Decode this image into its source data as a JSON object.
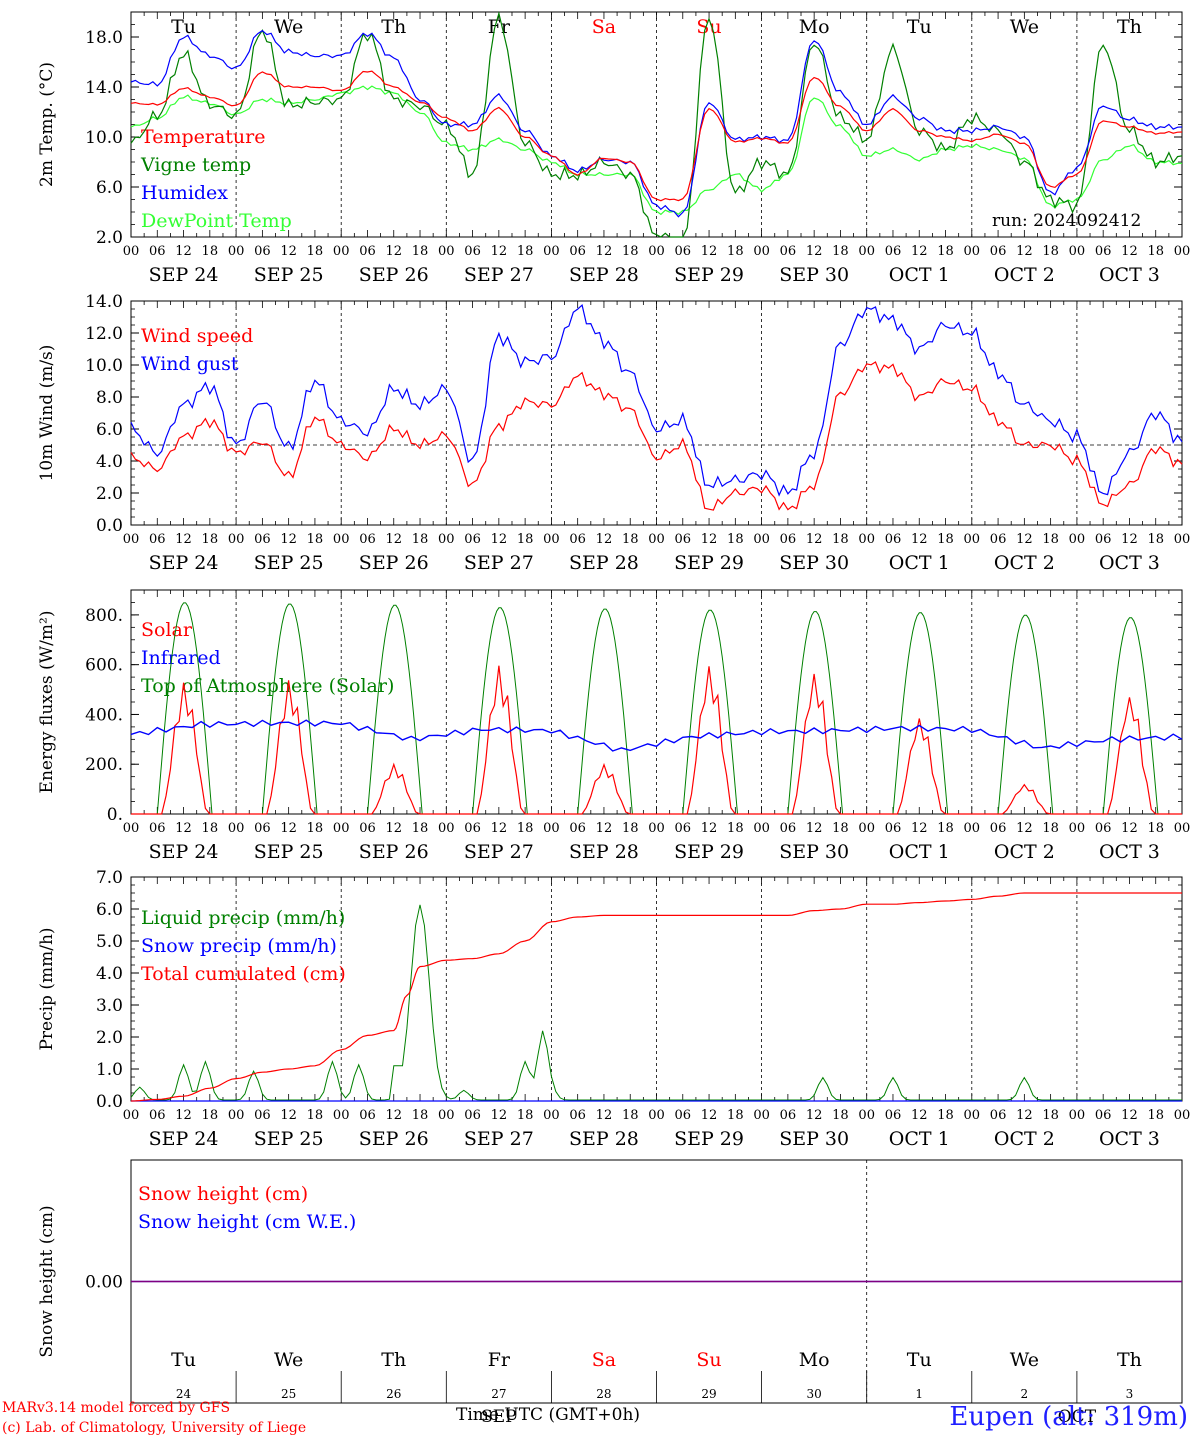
{
  "footer": {
    "model": "MARv3.14 model forced by GFS",
    "lab": "(c) Lab. of Climatology, University of Liege",
    "x_title": "Time UTC (GMT+0h)",
    "station": "Eupen (alt: 319m)",
    "run": "run: 2024092412"
  },
  "colors": {
    "red": "#ff0000",
    "green": "#008000",
    "blue": "#0000ff",
    "lightgreen": "#33ff33",
    "purple": "#800080"
  },
  "hour_ticks": [
    "00",
    "06",
    "12",
    "18"
  ],
  "date_labels": [
    "SEP 24",
    "SEP 25",
    "SEP 26",
    "SEP 27",
    "SEP 28",
    "SEP 29",
    "SEP 30",
    "OCT  1",
    "OCT  2",
    "OCT  3"
  ],
  "day_names": [
    "Tu",
    "We",
    "Th",
    "Fr",
    "Sa",
    "Su",
    "Mo",
    "Tu",
    "We",
    "Th"
  ],
  "day_colors": [
    "#000000",
    "#000000",
    "#000000",
    "#000000",
    "#ff0000",
    "#ff0000",
    "#000000",
    "#000000",
    "#000000",
    "#000000"
  ],
  "bottom_day_numbers": [
    "24",
    "25",
    "26",
    "27",
    "28",
    "29",
    "30",
    "1",
    "2",
    "3"
  ],
  "bottom_month_labels": [
    "SEP",
    "OCT"
  ],
  "chart_data": [
    {
      "type": "line",
      "ylabel": "2m Temp. (°C)",
      "ylim": [
        2,
        20
      ],
      "yticks": [
        "2.0",
        "6.0",
        "10.0",
        "14.0",
        "18.0"
      ],
      "legend": [
        "Temperature",
        "Vigne temp",
        "Humidex",
        "DewPoint Temp"
      ],
      "x_hours": [
        0,
        6,
        12,
        18,
        24,
        30,
        36,
        42,
        48,
        54,
        60,
        66,
        72,
        78,
        84,
        90,
        96,
        102,
        108,
        114,
        120,
        126,
        132,
        138,
        144,
        150,
        156,
        162,
        168,
        174,
        180,
        186,
        192,
        198,
        204,
        210,
        216,
        222,
        228,
        234,
        240
      ],
      "series": [
        {
          "name": "Temperature",
          "color": "#ff0000",
          "values": [
            12.7,
            12.6,
            13.9,
            13.2,
            12.5,
            15.2,
            14.0,
            14.0,
            13.7,
            15.3,
            14.0,
            12.8,
            11.5,
            10.5,
            12.3,
            10.0,
            8.5,
            7.0,
            8.3,
            8.0,
            5.0,
            5.0,
            12.3,
            9.6,
            9.9,
            9.5,
            14.8,
            12.4,
            10.5,
            12.2,
            10.5,
            10.0,
            9.7,
            10.2,
            9.5,
            6.0,
            7.0,
            11.3,
            10.8,
            10.3,
            10.4
          ]
        },
        {
          "name": "Vigne temp",
          "color": "#008000",
          "values": [
            9.5,
            11.7,
            16.6,
            12.6,
            11.7,
            18.5,
            12.5,
            12.8,
            13.0,
            18.3,
            13.0,
            12.5,
            10.9,
            7.0,
            19.5,
            9.5,
            7.0,
            6.9,
            8.0,
            7.0,
            2.0,
            1.5,
            19.6,
            5.5,
            8.0,
            7.0,
            17.6,
            11.5,
            9.8,
            17.0,
            10.5,
            9.0,
            11.5,
            10.5,
            8.0,
            5.0,
            4.5,
            17.4,
            10.5,
            8.0,
            8.5
          ]
        },
        {
          "name": "Humidex",
          "color": "#0000ff",
          "values": [
            14.4,
            14.2,
            18.0,
            16.5,
            15.5,
            18.5,
            16.8,
            16.5,
            16.5,
            18.3,
            16.3,
            13.0,
            11.0,
            11.0,
            13.3,
            10.5,
            8.5,
            7.3,
            8.2,
            8.0,
            4.5,
            3.8,
            12.8,
            9.8,
            10.0,
            9.7,
            17.8,
            13.5,
            11.0,
            13.2,
            11.5,
            10.5,
            10.5,
            10.8,
            10.0,
            5.5,
            7.5,
            12.5,
            11.4,
            10.8,
            10.8
          ]
        },
        {
          "name": "DewPoint Temp",
          "color": "#33ff33",
          "values": [
            10.8,
            11.5,
            13.2,
            12.7,
            11.8,
            13.0,
            12.7,
            13.0,
            13.5,
            14.0,
            13.5,
            12.0,
            9.5,
            9.0,
            9.8,
            9.0,
            8.0,
            7.0,
            7.0,
            7.0,
            4.0,
            4.0,
            5.8,
            7.0,
            5.8,
            7.0,
            13.2,
            10.8,
            8.5,
            9.0,
            8.2,
            9.0,
            9.3,
            9.0,
            8.3,
            4.5,
            5.0,
            8.2,
            9.3,
            8.0,
            7.9
          ]
        }
      ]
    },
    {
      "type": "line",
      "ylabel": "10m Wind (m/s)",
      "ylim": [
        0,
        14
      ],
      "yticks": [
        "0.0",
        "2.0",
        "4.0",
        "6.0",
        "8.0",
        "10.0",
        "12.0",
        "14.0"
      ],
      "reference_line": 5,
      "legend": [
        "Wind speed",
        "Wind gust"
      ],
      "x_hours": [
        0,
        6,
        12,
        18,
        24,
        30,
        36,
        42,
        48,
        54,
        60,
        66,
        72,
        78,
        84,
        90,
        96,
        102,
        108,
        114,
        120,
        126,
        132,
        138,
        144,
        150,
        156,
        162,
        168,
        174,
        180,
        186,
        192,
        198,
        204,
        210,
        216,
        222,
        228,
        234,
        240
      ],
      "series": [
        {
          "name": "Wind speed",
          "color": "#ff0000",
          "values": [
            4.2,
            3.5,
            5.5,
            6.5,
            4.5,
            5.2,
            3.0,
            6.7,
            5.0,
            4.2,
            6.0,
            5.0,
            5.6,
            2.5,
            6.2,
            7.7,
            7.5,
            9.3,
            8.2,
            7.2,
            4.2,
            5.0,
            1.0,
            2.0,
            2.3,
            1.0,
            2.5,
            8.2,
            10.0,
            9.8,
            8.0,
            9.0,
            8.5,
            6.5,
            5.0,
            5.0,
            4.0,
            1.3,
            2.5,
            4.8,
            3.8
          ]
        },
        {
          "name": "Wind gust",
          "color": "#0000ff",
          "values": [
            6.0,
            4.5,
            7.5,
            8.7,
            5.0,
            7.8,
            4.8,
            9.0,
            6.5,
            5.8,
            8.5,
            7.5,
            8.5,
            4.0,
            11.8,
            10.2,
            10.5,
            13.5,
            11.5,
            9.5,
            6.0,
            6.5,
            2.5,
            2.8,
            3.2,
            2.0,
            4.5,
            11.3,
            13.5,
            12.8,
            11.0,
            12.5,
            12.0,
            9.5,
            7.5,
            6.5,
            5.5,
            2.0,
            4.5,
            7.0,
            5.2
          ]
        }
      ]
    },
    {
      "type": "line",
      "ylabel": "Energy fluxes (W/m²)",
      "ylim": [
        0,
        900
      ],
      "yticks": [
        "0.",
        "200.",
        "400.",
        "600.",
        "800."
      ],
      "legend": [
        "Solar",
        "Infrared",
        "Top of Atmosphere (Solar)"
      ],
      "series": [
        {
          "name": "Solar",
          "color": "#ff0000",
          "peaks": [
            530,
            540,
            200,
            600,
            200,
            600,
            570,
            390,
            120,
            480
          ]
        },
        {
          "name": "Infrared",
          "color": "#0000ff",
          "values": [
            320,
            360,
            365,
            365,
            300,
            340,
            335,
            255,
            310,
            330,
            335,
            345,
            340,
            265,
            300,
            310
          ]
        },
        {
          "name": "Top of Atmosphere (Solar)",
          "color": "#008000",
          "peaks": [
            850,
            845,
            840,
            830,
            825,
            820,
            815,
            810,
            800,
            790
          ]
        }
      ]
    },
    {
      "type": "line",
      "ylabel": "Precip (mm/h)",
      "ylim": [
        0,
        7
      ],
      "yticks": [
        "0.0",
        "1.0",
        "2.0",
        "3.0",
        "4.0",
        "5.0",
        "6.0",
        "7.0"
      ],
      "legend": [
        "Liquid precip (mm/h)",
        "Snow precip (mm/h)",
        "Total cumulated (cm)"
      ],
      "series": [
        {
          "name": "Liquid precip (mm/h)",
          "color": "#008000",
          "peaks_hours": [
            2,
            12,
            17,
            28,
            46,
            52,
            66,
            76,
            90,
            94,
            96,
            158,
            174,
            204
          ],
          "peaks_values": [
            0.4,
            1.1,
            1.2,
            0.9,
            1.2,
            1.1,
            6.1,
            0.3,
            1.2,
            2.1,
            0.3,
            0.7,
            0.7,
            0.7
          ]
        },
        {
          "name": "Snow precip (mm/h)",
          "color": "#0000ff",
          "values": [
            0
          ]
        },
        {
          "name": "Total cumulated (cm)",
          "color": "#ff0000",
          "x_hours": [
            0,
            6,
            12,
            18,
            24,
            30,
            36,
            42,
            48,
            54,
            60,
            63,
            66,
            72,
            78,
            84,
            90,
            96,
            102,
            108,
            114,
            120,
            126,
            132,
            138,
            144,
            150,
            156,
            162,
            168,
            174,
            180,
            186,
            192,
            198,
            204,
            210,
            216,
            222,
            228,
            234,
            240
          ],
          "values": [
            0,
            0.05,
            0.15,
            0.4,
            0.7,
            0.9,
            1.0,
            1.1,
            1.6,
            2.05,
            2.2,
            3.3,
            4.2,
            4.4,
            4.45,
            4.6,
            5.0,
            5.6,
            5.75,
            5.8,
            5.8,
            5.8,
            5.8,
            5.8,
            5.8,
            5.8,
            5.8,
            5.95,
            6.0,
            6.15,
            6.15,
            6.2,
            6.25,
            6.3,
            6.4,
            6.5,
            6.5,
            6.5,
            6.5,
            6.5,
            6.5,
            6.5
          ]
        }
      ]
    },
    {
      "type": "line",
      "ylabel": "Snow height (cm)",
      "ytick": "0.00",
      "legend": [
        "Snow height (cm)",
        "Snow height (cm W.E.)"
      ],
      "series": [
        {
          "name": "Snow height (cm)",
          "color": "#ff0000",
          "values": [
            0,
            0
          ]
        },
        {
          "name": "Snow height (cm W.E.)",
          "color": "#0000ff",
          "values": [
            0,
            0
          ]
        }
      ]
    }
  ]
}
